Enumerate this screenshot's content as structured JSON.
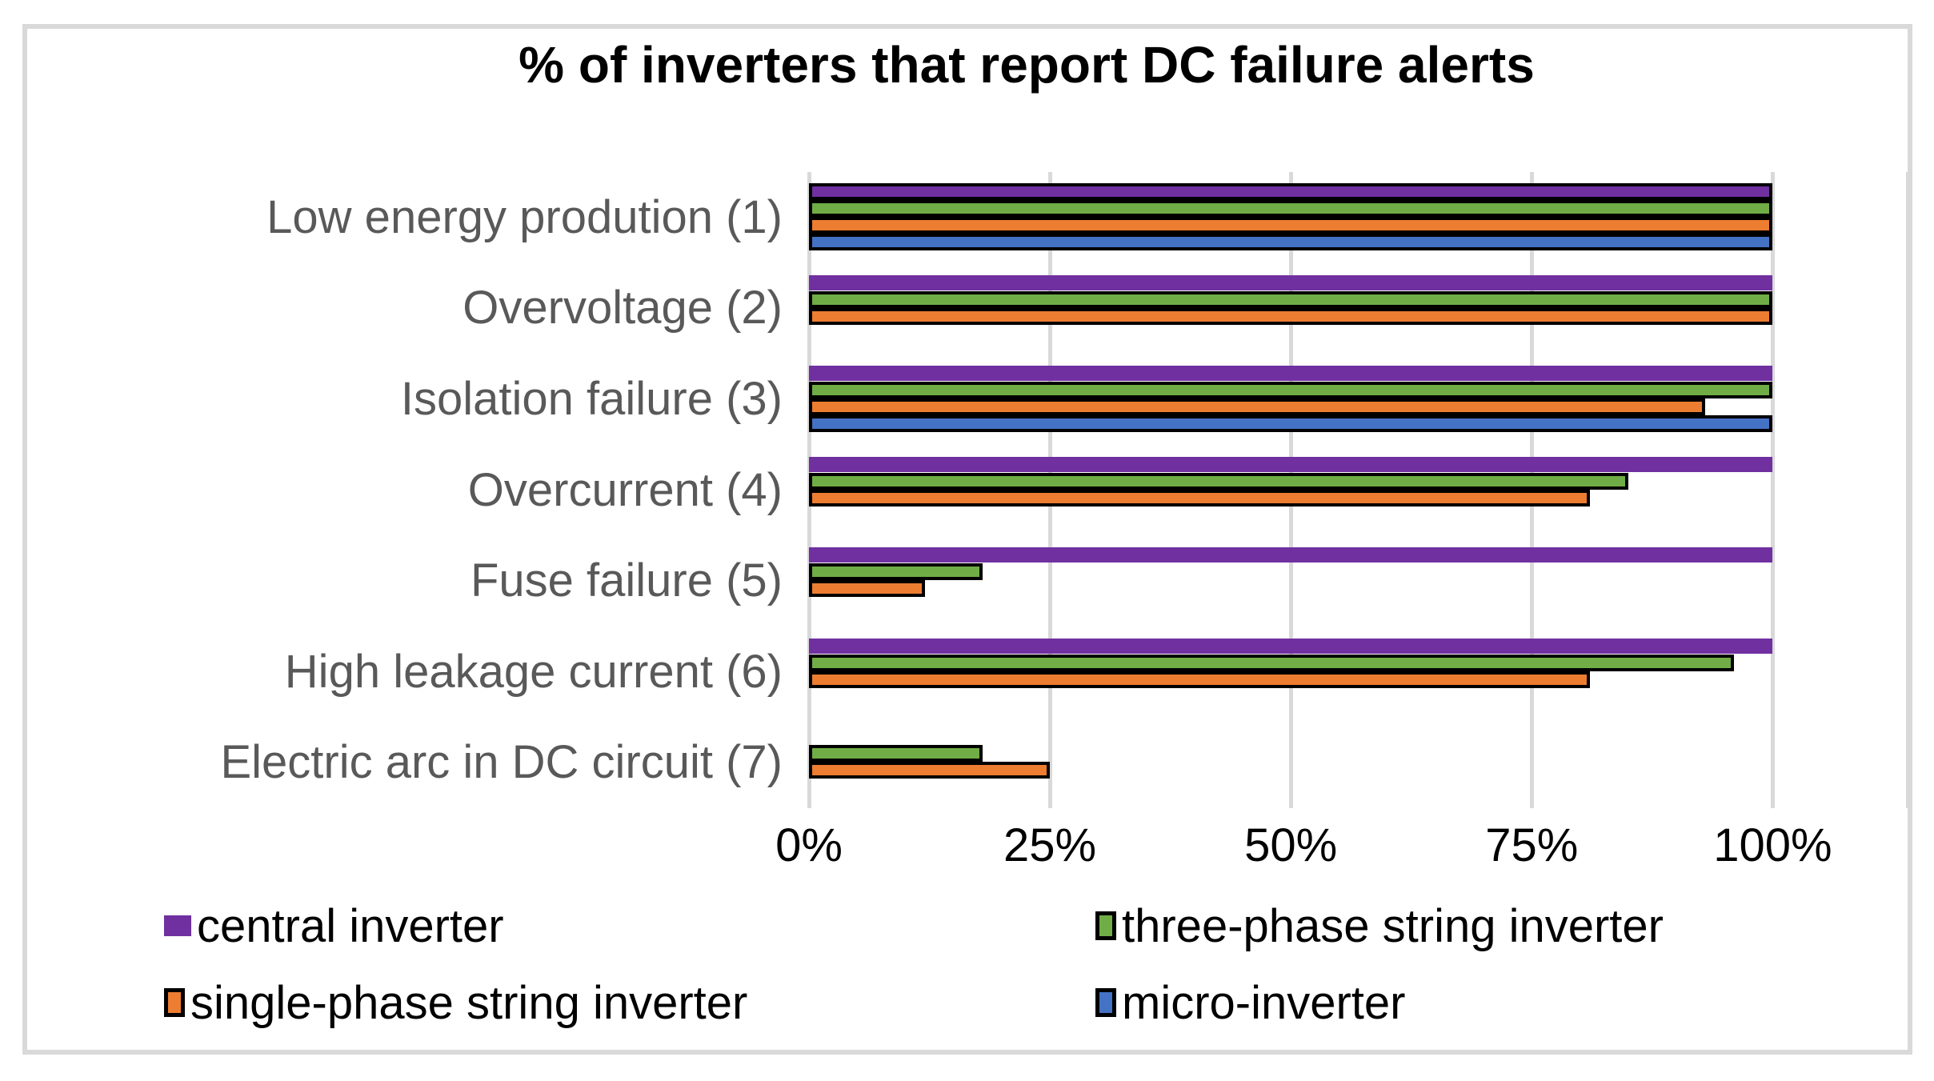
{
  "chart_data": {
    "type": "bar",
    "orientation": "horizontal",
    "title": "% of inverters that report DC failure alerts",
    "categories": [
      "Low energy prodution (1)",
      "Overvoltage (2)",
      "Isolation failure (3)",
      "Overcurrent (4)",
      "Fuse failure (5)",
      "High leakage current (6)",
      "Electric arc in DC circuit (7)"
    ],
    "series": [
      {
        "name": "central inverter",
        "color": "#7030A0",
        "border": false,
        "border_on_categories": [
          0
        ],
        "values": [
          100,
          100,
          100,
          100,
          100,
          100,
          null
        ]
      },
      {
        "name": "three-phase string inverter",
        "color": "#70AD47",
        "border": true,
        "border_on_categories": [],
        "values": [
          100,
          100,
          100,
          85,
          18,
          96,
          18
        ]
      },
      {
        "name": "single-phase string inverter",
        "color": "#ED7D31",
        "border": true,
        "border_on_categories": [],
        "values": [
          100,
          100,
          93,
          81,
          12,
          81,
          25
        ]
      },
      {
        "name": "micro-inverter",
        "color": "#4472C4",
        "border": true,
        "border_on_categories": [],
        "values": [
          100,
          null,
          100,
          null,
          null,
          null,
          null
        ]
      }
    ],
    "x_tick_labels": [
      "0%",
      "25%",
      "50%",
      "75%",
      "100%"
    ],
    "x_tick_values": [
      0,
      25,
      50,
      75,
      100
    ],
    "xlim": [
      0,
      114
    ],
    "grid": true,
    "legend_position": "bottom",
    "legend_columns": 2,
    "colors": {
      "bar_border": "#000000",
      "gridline": "#d9d9d9",
      "frame_border": "#d9d9d9",
      "category_text": "#595959",
      "tick_text": "#000000",
      "title_text": "#000000",
      "legend_text": "#000000"
    }
  }
}
